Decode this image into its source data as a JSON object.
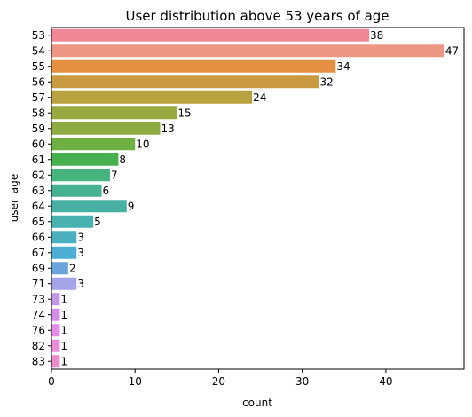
{
  "chart_data": {
    "type": "bar",
    "orientation": "horizontal",
    "title": "User distribution above 53 years of age",
    "xlabel": "count",
    "ylabel": "user_age",
    "categories": [
      "53",
      "54",
      "55",
      "56",
      "57",
      "58",
      "59",
      "60",
      "61",
      "62",
      "63",
      "64",
      "65",
      "66",
      "67",
      "69",
      "71",
      "73",
      "74",
      "76",
      "82",
      "83"
    ],
    "values": [
      38,
      47,
      34,
      32,
      24,
      15,
      13,
      10,
      8,
      7,
      6,
      9,
      5,
      3,
      3,
      2,
      3,
      1,
      1,
      1,
      1,
      1
    ],
    "xlim": [
      0,
      49.35
    ],
    "xticks": [
      0,
      10,
      20,
      30,
      40
    ],
    "grid": false,
    "legend": "none",
    "colors": [
      "#f08795",
      "#ed9782",
      "#e59040",
      "#c99a40",
      "#b8a23f",
      "#97a93f",
      "#8cab41",
      "#6eb041",
      "#47b04e",
      "#47b480",
      "#46b190",
      "#48b0a3",
      "#48b2b1",
      "#4ab0c0",
      "#4daed5",
      "#67a4dc",
      "#a4a3e8",
      "#c197e6",
      "#d28ee6",
      "#e48ce6",
      "#e88ed6",
      "#ec8bc8"
    ]
  }
}
